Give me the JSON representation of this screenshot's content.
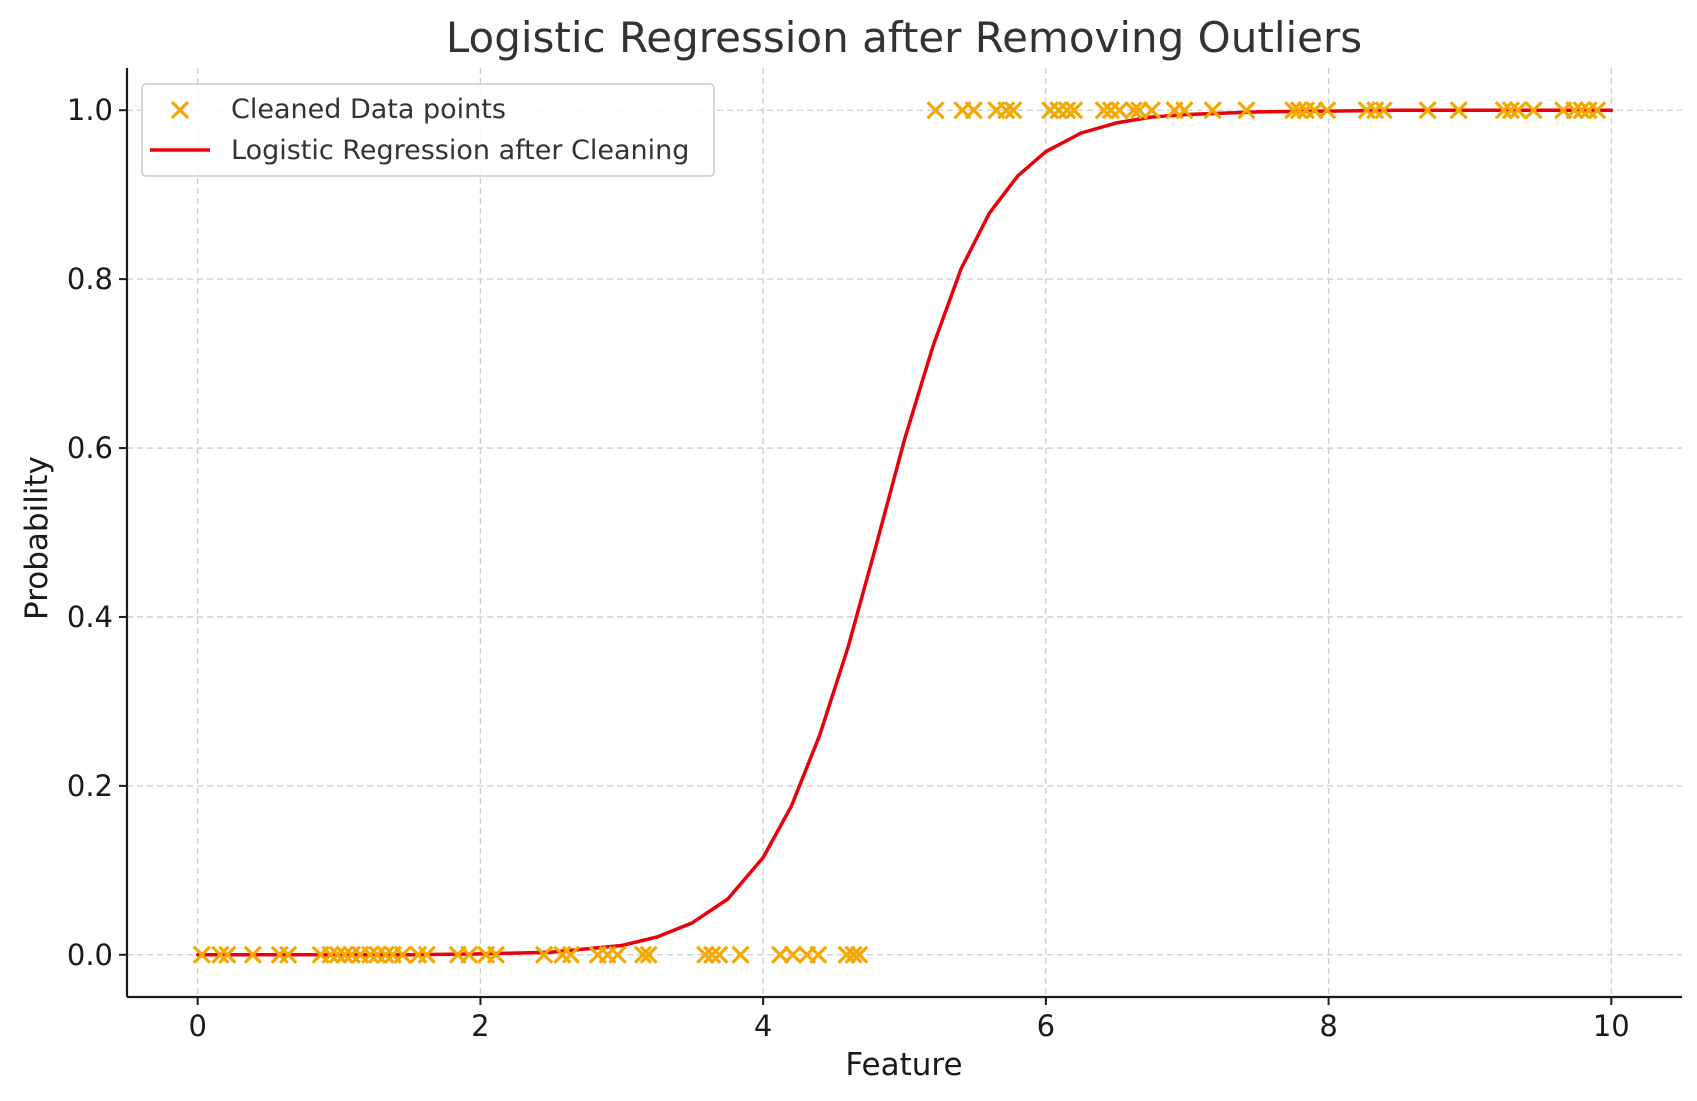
{
  "chart_data": {
    "type": "scatter",
    "title": "Logistic Regression after Removing Outliers",
    "xlabel": "Feature",
    "ylabel": "Probability",
    "xlim": [
      -0.5,
      10.5
    ],
    "ylim": [
      -0.05,
      1.05
    ],
    "xticks": [
      0,
      2,
      4,
      6,
      8,
      10
    ],
    "xtick_labels": [
      "0",
      "2",
      "4",
      "6",
      "8",
      "10"
    ],
    "yticks": [
      0.0,
      0.2,
      0.4,
      0.6,
      0.8,
      1.0
    ],
    "ytick_labels": [
      "0.0",
      "0.2",
      "0.4",
      "0.6",
      "0.8",
      "1.0"
    ],
    "grid": true,
    "legend_position": "top-left",
    "series": [
      {
        "name": "Cleaned Data points",
        "kind": "scatter",
        "marker": "x",
        "color": "#f5a800",
        "points": [
          {
            "x": 0.03,
            "y": 0
          },
          {
            "x": 0.16,
            "y": 0
          },
          {
            "x": 0.21,
            "y": 0
          },
          {
            "x": 0.39,
            "y": 0
          },
          {
            "x": 0.58,
            "y": 0
          },
          {
            "x": 0.64,
            "y": 0
          },
          {
            "x": 0.87,
            "y": 0
          },
          {
            "x": 0.94,
            "y": 0
          },
          {
            "x": 0.99,
            "y": 0
          },
          {
            "x": 1.04,
            "y": 0
          },
          {
            "x": 1.09,
            "y": 0
          },
          {
            "x": 1.15,
            "y": 0
          },
          {
            "x": 1.22,
            "y": 0
          },
          {
            "x": 1.27,
            "y": 0
          },
          {
            "x": 1.33,
            "y": 0
          },
          {
            "x": 1.38,
            "y": 0
          },
          {
            "x": 1.45,
            "y": 0
          },
          {
            "x": 1.56,
            "y": 0
          },
          {
            "x": 1.62,
            "y": 0
          },
          {
            "x": 1.84,
            "y": 0
          },
          {
            "x": 1.92,
            "y": 0
          },
          {
            "x": 2.04,
            "y": 0
          },
          {
            "x": 2.11,
            "y": 0
          },
          {
            "x": 2.45,
            "y": 0
          },
          {
            "x": 2.58,
            "y": 0
          },
          {
            "x": 2.64,
            "y": 0
          },
          {
            "x": 2.83,
            "y": 0
          },
          {
            "x": 2.9,
            "y": 0
          },
          {
            "x": 2.97,
            "y": 0
          },
          {
            "x": 3.15,
            "y": 0
          },
          {
            "x": 3.19,
            "y": 0
          },
          {
            "x": 3.59,
            "y": 0
          },
          {
            "x": 3.64,
            "y": 0
          },
          {
            "x": 3.69,
            "y": 0
          },
          {
            "x": 3.84,
            "y": 0
          },
          {
            "x": 4.12,
            "y": 0
          },
          {
            "x": 4.21,
            "y": 0
          },
          {
            "x": 4.31,
            "y": 0
          },
          {
            "x": 4.39,
            "y": 0
          },
          {
            "x": 4.59,
            "y": 0
          },
          {
            "x": 4.64,
            "y": 0
          },
          {
            "x": 4.68,
            "y": 0
          },
          {
            "x": 5.22,
            "y": 1
          },
          {
            "x": 5.41,
            "y": 1
          },
          {
            "x": 5.49,
            "y": 1
          },
          {
            "x": 5.65,
            "y": 1
          },
          {
            "x": 5.72,
            "y": 1
          },
          {
            "x": 5.77,
            "y": 1
          },
          {
            "x": 6.03,
            "y": 1
          },
          {
            "x": 6.09,
            "y": 1
          },
          {
            "x": 6.15,
            "y": 1
          },
          {
            "x": 6.2,
            "y": 1
          },
          {
            "x": 6.41,
            "y": 1
          },
          {
            "x": 6.46,
            "y": 1
          },
          {
            "x": 6.52,
            "y": 1
          },
          {
            "x": 6.62,
            "y": 1
          },
          {
            "x": 6.66,
            "y": 1
          },
          {
            "x": 6.75,
            "y": 1
          },
          {
            "x": 6.91,
            "y": 1
          },
          {
            "x": 6.98,
            "y": 1
          },
          {
            "x": 7.18,
            "y": 1
          },
          {
            "x": 7.42,
            "y": 1
          },
          {
            "x": 7.75,
            "y": 1
          },
          {
            "x": 7.79,
            "y": 1
          },
          {
            "x": 7.84,
            "y": 1
          },
          {
            "x": 7.9,
            "y": 1
          },
          {
            "x": 7.99,
            "y": 1
          },
          {
            "x": 8.27,
            "y": 1
          },
          {
            "x": 8.33,
            "y": 1
          },
          {
            "x": 8.39,
            "y": 1
          },
          {
            "x": 8.7,
            "y": 1
          },
          {
            "x": 8.92,
            "y": 1
          },
          {
            "x": 9.24,
            "y": 1
          },
          {
            "x": 9.29,
            "y": 1
          },
          {
            "x": 9.34,
            "y": 1
          },
          {
            "x": 9.45,
            "y": 1
          },
          {
            "x": 9.66,
            "y": 1
          },
          {
            "x": 9.74,
            "y": 1
          },
          {
            "x": 9.79,
            "y": 1
          },
          {
            "x": 9.84,
            "y": 1
          },
          {
            "x": 9.9,
            "y": 1
          }
        ]
      },
      {
        "name": "Logistic Regression after Cleaning",
        "kind": "line",
        "color": "#e8000b",
        "x": [
          0,
          0.5,
          1,
          1.5,
          2,
          2.5,
          3,
          3.25,
          3.5,
          3.75,
          4,
          4.2,
          4.4,
          4.6,
          4.8,
          5,
          5.2,
          5.4,
          5.6,
          5.8,
          6,
          6.25,
          6.5,
          6.75,
          7,
          7.5,
          8,
          8.5,
          9,
          9.5,
          10
        ],
        "y": [
          0.0,
          0.0,
          0.0,
          0.0,
          0.001,
          0.003,
          0.011,
          0.021,
          0.038,
          0.066,
          0.115,
          0.176,
          0.26,
          0.364,
          0.485,
          0.61,
          0.72,
          0.812,
          0.878,
          0.922,
          0.951,
          0.973,
          0.985,
          0.992,
          0.995,
          0.998,
          0.999,
          1.0,
          1.0,
          1.0,
          1.0
        ]
      }
    ]
  }
}
